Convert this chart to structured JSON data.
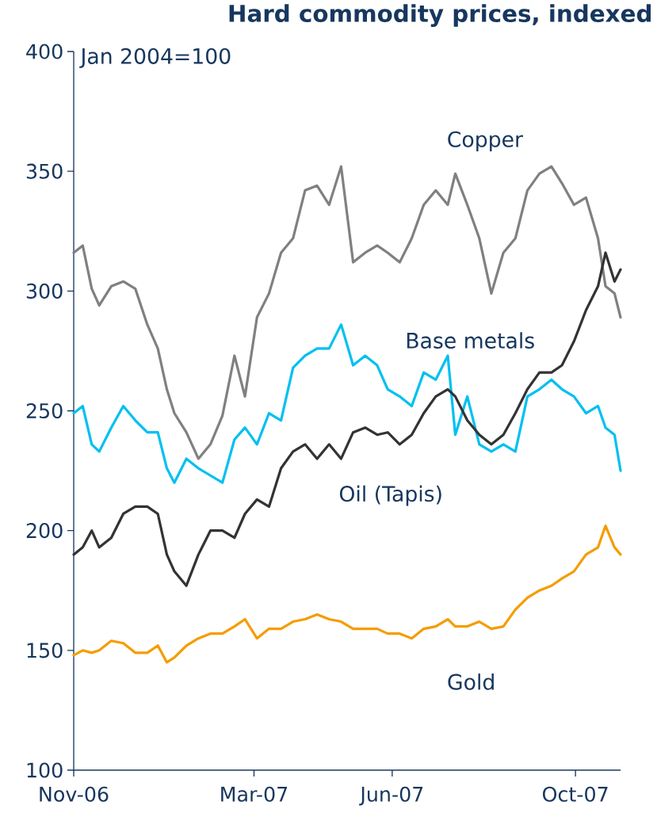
{
  "chart_data": {
    "type": "line",
    "title": "Hard commodity prices, indexed",
    "ylabel": "Jan 2004=100",
    "x": [
      "2006-11-01",
      "2006-11-07",
      "2006-11-13",
      "2006-11-18",
      "2006-11-26",
      "2006-12-04",
      "2006-12-12",
      "2006-12-20",
      "2006-12-27",
      "2007-01-02",
      "2007-01-07",
      "2007-01-15",
      "2007-01-23",
      "2007-01-31",
      "2007-02-08",
      "2007-02-16",
      "2007-02-23",
      "2007-03-03",
      "2007-03-11",
      "2007-03-19",
      "2007-03-27",
      "2007-04-04",
      "2007-04-12",
      "2007-04-20",
      "2007-04-28",
      "2007-05-06",
      "2007-05-14",
      "2007-05-22",
      "2007-05-29",
      "2007-06-06",
      "2007-06-14",
      "2007-06-22",
      "2007-06-30",
      "2007-07-08",
      "2007-07-13",
      "2007-07-21",
      "2007-07-29",
      "2007-08-06",
      "2007-08-14",
      "2007-08-22",
      "2007-08-30",
      "2007-09-07",
      "2007-09-15",
      "2007-09-22",
      "2007-09-30",
      "2007-10-08",
      "2007-10-16",
      "2007-10-21",
      "2007-10-27",
      "2007-10-31"
    ],
    "series": [
      {
        "name": "Copper",
        "color": "#808080",
        "values": [
          316,
          319,
          301,
          294,
          302,
          304,
          301,
          286,
          276,
          259,
          249,
          241,
          230,
          236,
          248,
          273,
          256,
          289,
          299,
          316,
          322,
          342,
          344,
          336,
          352,
          312,
          316,
          319,
          316,
          312,
          322,
          336,
          342,
          336,
          349,
          336,
          322,
          299,
          316,
          322,
          342,
          349,
          352,
          345,
          336,
          339,
          322,
          302,
          299,
          289
        ]
      },
      {
        "name": "Base metals",
        "color": "#00c0f0",
        "values": [
          249,
          252,
          236,
          233,
          243,
          252,
          246,
          241,
          241,
          226,
          220,
          230,
          226,
          223,
          220,
          238,
          243,
          236,
          249,
          246,
          268,
          273,
          276,
          276,
          286,
          269,
          273,
          269,
          259,
          256,
          252,
          266,
          263,
          273,
          240,
          256,
          236,
          233,
          236,
          233,
          256,
          259,
          263,
          259,
          256,
          249,
          252,
          243,
          240,
          225
        ]
      },
      {
        "name": "Oil (Tapis)",
        "color": "#333333",
        "values": [
          190,
          193,
          200,
          193,
          197,
          207,
          210,
          210,
          207,
          190,
          183,
          177,
          190,
          200,
          200,
          197,
          207,
          213,
          210,
          226,
          233,
          236,
          230,
          236,
          230,
          241,
          243,
          240,
          241,
          236,
          240,
          249,
          256,
          259,
          256,
          246,
          240,
          236,
          240,
          249,
          259,
          266,
          266,
          269,
          279,
          292,
          302,
          316,
          304,
          309
        ]
      },
      {
        "name": "Gold",
        "color": "#f59c00",
        "values": [
          148,
          150,
          149,
          150,
          154,
          153,
          149,
          149,
          152,
          145,
          147,
          152,
          155,
          157,
          157,
          160,
          163,
          155,
          159,
          159,
          162,
          163,
          165,
          163,
          162,
          159,
          159,
          159,
          157,
          157,
          155,
          159,
          160,
          163,
          160,
          160,
          162,
          159,
          160,
          167,
          172,
          175,
          177,
          180,
          183,
          190,
          193,
          202,
          193,
          190
        ]
      }
    ],
    "xlim": [
      "2006-11-01",
      "2007-10-31"
    ],
    "xticks": [
      {
        "value": "2006-11-01",
        "label": "Nov-06"
      },
      {
        "value": "2007-03-01",
        "label": "Mar-07"
      },
      {
        "value": "2007-06-01",
        "label": "Jun-07"
      },
      {
        "value": "2007-10-01",
        "label": "Oct-07"
      }
    ],
    "ylim": [
      100,
      400
    ],
    "yticks": [
      100,
      150,
      200,
      250,
      300,
      350,
      400
    ],
    "grid": false
  }
}
